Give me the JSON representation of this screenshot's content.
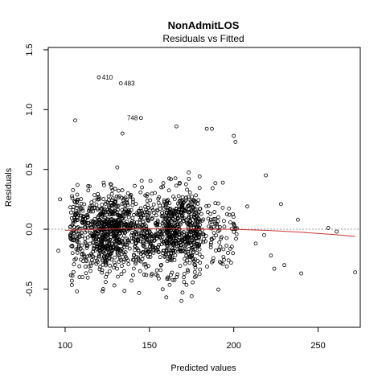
{
  "chart_data": {
    "type": "scatter",
    "title": "NonAdmitLOS",
    "subtitle": "Residuals vs Fitted",
    "xlabel": "Predicted values",
    "ylabel": "Residuals",
    "xlim": [
      90,
      275
    ],
    "ylim": [
      -0.82,
      1.52
    ],
    "xticks": [
      100,
      150,
      200,
      250
    ],
    "yticks": [
      -0.5,
      0.0,
      0.5,
      1.0,
      1.5
    ],
    "xtick_labels": [
      "100",
      "150",
      "200",
      "250"
    ],
    "ytick_labels": [
      "-0.5",
      "0.0",
      "0.5",
      "1.0",
      "1.5"
    ],
    "reference_line": {
      "y": 0,
      "style": "dotted",
      "color": "#999999"
    },
    "smoother": {
      "color": "#cc3333",
      "x": [
        100,
        120,
        140,
        160,
        180,
        200,
        220,
        240,
        260,
        272
      ],
      "y": [
        -0.01,
        0.0,
        0.005,
        0.005,
        0.0,
        0.0,
        -0.01,
        -0.025,
        -0.045,
        -0.06
      ]
    },
    "labeled_points": [
      {
        "label": "410",
        "x": 120,
        "y": 1.27
      },
      {
        "label": "483",
        "x": 133,
        "y": 1.22
      },
      {
        "label": "748",
        "x": 145,
        "y": 0.93
      }
    ],
    "outlier_points": [
      {
        "x": 106,
        "y": 0.91
      },
      {
        "x": 134,
        "y": 0.8
      },
      {
        "x": 166,
        "y": 0.86
      },
      {
        "x": 184,
        "y": 0.84
      },
      {
        "x": 187,
        "y": 0.84
      },
      {
        "x": 200,
        "y": 0.78
      },
      {
        "x": 201,
        "y": 0.73
      },
      {
        "x": 219,
        "y": 0.45
      },
      {
        "x": 228,
        "y": 0.21
      },
      {
        "x": 238,
        "y": 0.08
      },
      {
        "x": 256,
        "y": 0.01
      },
      {
        "x": 261,
        "y": -0.02
      },
      {
        "x": 272,
        "y": -0.36
      },
      {
        "x": 240,
        "y": -0.37
      },
      {
        "x": 224,
        "y": -0.33
      },
      {
        "x": 230,
        "y": -0.3
      },
      {
        "x": 208,
        "y": 0.19
      },
      {
        "x": 213,
        "y": -0.12
      },
      {
        "x": 218,
        "y": -0.05
      },
      {
        "x": 222,
        "y": -0.22
      },
      {
        "x": 96,
        "y": -0.18
      },
      {
        "x": 97,
        "y": 0.25
      },
      {
        "x": 104,
        "y": -0.43
      },
      {
        "x": 107,
        "y": -0.52
      },
      {
        "x": 160,
        "y": -0.57
      },
      {
        "x": 169,
        "y": -0.6
      },
      {
        "x": 175,
        "y": -0.56
      }
    ],
    "cloud": {
      "n_points": 1600,
      "x_range": [
        100,
        200
      ],
      "y_mean": -0.02,
      "y_sd": 0.17
    }
  }
}
